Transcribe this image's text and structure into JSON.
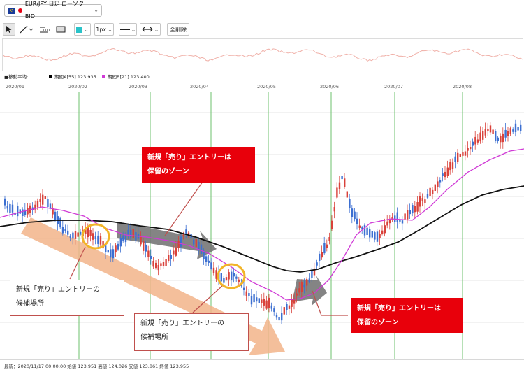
{
  "header": {
    "symbol_label": "EUR/JPY 日足 ローソク BID",
    "symbol_icon": "eu-flag-icon"
  },
  "toolbar": {
    "width_value": "1px",
    "clear_all_label": "全削除",
    "accent_color": "#29c3c9"
  },
  "legend": {
    "title": "■移動平均:",
    "series": [
      {
        "label": "期間A[55] 123.935",
        "color": "#000000"
      },
      {
        "label": "期間B[21] 123.400",
        "color": "#d03ad6"
      }
    ]
  },
  "date_axis": {
    "labels": [
      "2020/01",
      "2020/02",
      "2020/03",
      "2020/04",
      "2020/05",
      "2020/06",
      "2020/07",
      "2020/08"
    ]
  },
  "callouts": {
    "red_1": [
      "新規「売り」エントリーは",
      "保留のゾーン"
    ],
    "red_2": [
      "新規「売り」エントリーは",
      "保留のゾーン"
    ],
    "white_1": [
      "新規「売り」エントリーの",
      "候補場所"
    ],
    "white_2": [
      "新規「売り」エントリーの",
      "候補場所"
    ]
  },
  "footer": {
    "text": "最新：2020/11/17 00:00:00 始値 123.951 高値 124.026 安値 123.861 終値 123.955"
  },
  "colors": {
    "bull": "#d9413a",
    "bear": "#3c6fd1",
    "ma_long": "#111111",
    "ma_short": "#d03ad6",
    "grid_green": "#6cc26c",
    "arrow_orange": "#f2b48a",
    "zone_gray": "#6e6e6e",
    "circle_orange": "#f2b428",
    "callout_red": "#e8000b"
  }
}
